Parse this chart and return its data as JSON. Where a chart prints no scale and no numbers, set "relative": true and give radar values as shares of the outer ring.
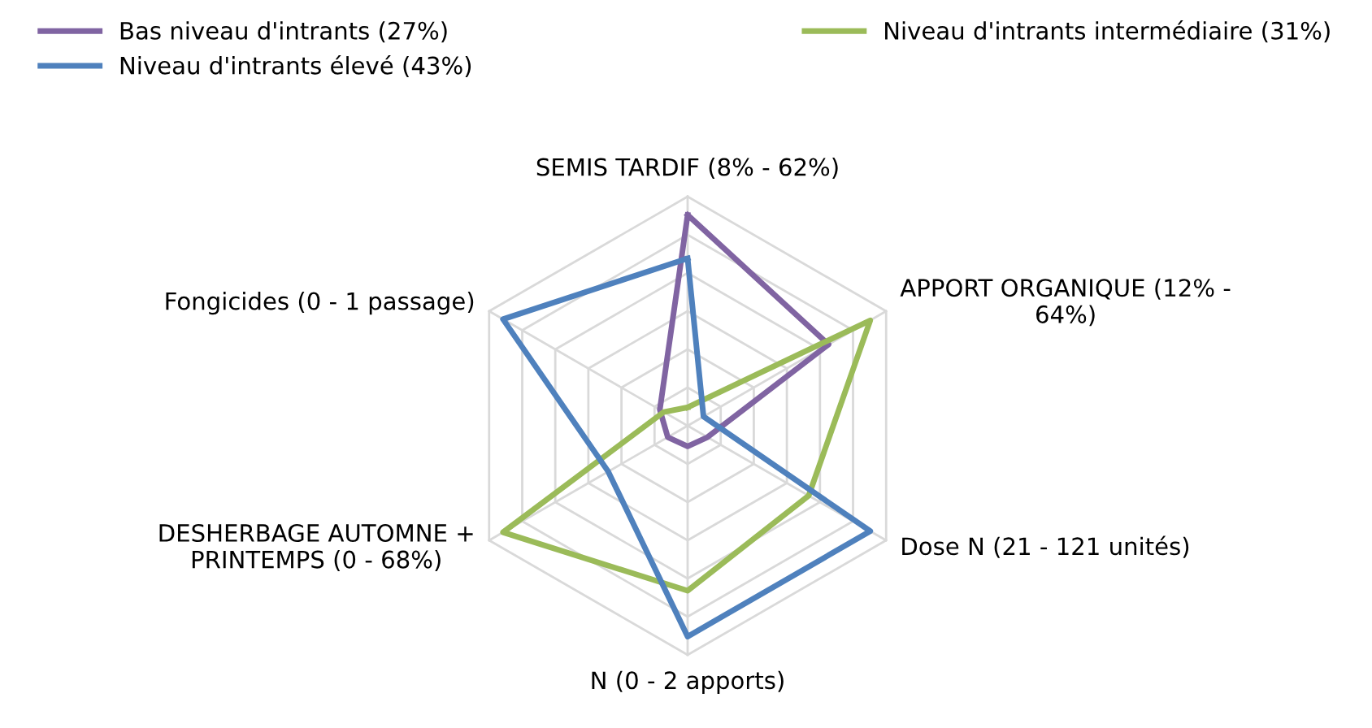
{
  "chart_data": {
    "type": "radar",
    "relative": true,
    "categories": [
      "SEMIS TARDIF (8% - 62%)",
      "APPORT ORGANIQUE (12% -\n64%)",
      "Dose N (21 - 121 unités)",
      "N (0 - 2 apports)",
      "DESHERBAGE AUTOMNE +\nPRINTEMPS (0 - 68%)",
      "Fongicides (0 - 1 passage)"
    ],
    "series": [
      {
        "name": "Bas niveau d'intrants (27%)",
        "color": "#8064a2",
        "values": [
          0.92,
          0.71,
          0.1,
          0.09,
          0.1,
          0.14
        ]
      },
      {
        "name": "Niveau d'intrants intermédiaire (31%)",
        "color": "#9bbb59",
        "values": [
          0.08,
          0.92,
          0.61,
          0.72,
          0.93,
          0.12
        ]
      },
      {
        "name": "Niveau d'intrants élevé (43%)",
        "color": "#4f81bd",
        "values": [
          0.73,
          0.08,
          0.92,
          0.92,
          0.4,
          0.93
        ]
      }
    ],
    "grid": true,
    "legend": "top",
    "marker": "none",
    "line_style": "solid"
  }
}
